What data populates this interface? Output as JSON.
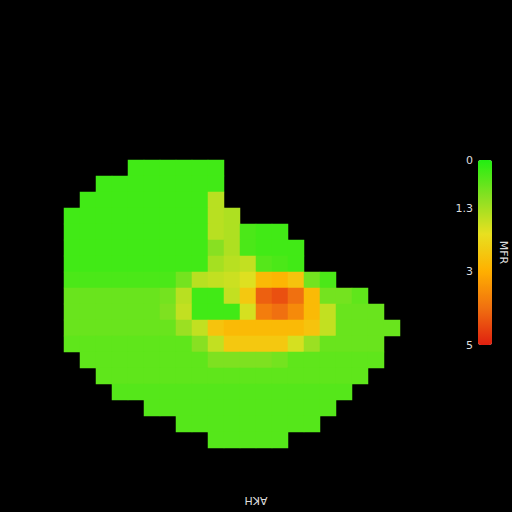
{
  "chart_data": {
    "type": "heatmap",
    "xlabel": "AKH",
    "tick_labels": false,
    "grid_size": [
      32,
      32
    ],
    "rows": [
      {
        "row": 10,
        "start": 8,
        "values": [
          0.3,
          0.3,
          0.3,
          0.3,
          0.3,
          0.3
        ]
      },
      {
        "row": 11,
        "start": 6,
        "values": [
          0.3,
          0.3,
          0.3,
          0.3,
          0.3,
          0.3,
          0.3,
          0.3
        ]
      },
      {
        "row": 12,
        "start": 5,
        "values": [
          0.3,
          0.3,
          0.3,
          0.3,
          0.3,
          0.3,
          0.3,
          0.3,
          1.5
        ]
      },
      {
        "row": 13,
        "start": 4,
        "values": [
          0.3,
          0.3,
          0.3,
          0.3,
          0.3,
          0.3,
          0.3,
          0.3,
          0.3,
          1.5,
          1.4
        ]
      },
      {
        "row": 14,
        "start": 4,
        "values": [
          0.3,
          0.3,
          0.3,
          0.3,
          0.3,
          0.3,
          0.3,
          0.3,
          0.3,
          1.5,
          1.4,
          0.4,
          0.3,
          0.3
        ]
      },
      {
        "row": 15,
        "start": 4,
        "values": [
          0.3,
          0.3,
          0.3,
          0.3,
          0.3,
          0.3,
          0.3,
          0.3,
          0.3,
          1.0,
          1.4,
          0.4,
          0.3,
          0.3,
          0.3
        ]
      },
      {
        "row": 16,
        "start": 4,
        "values": [
          0.3,
          0.3,
          0.3,
          0.3,
          0.3,
          0.3,
          0.3,
          0.3,
          0.3,
          1.3,
          1.5,
          1.6,
          0.5,
          0.4,
          0.3
        ]
      },
      {
        "row": 17,
        "start": 4,
        "values": [
          0.4,
          0.4,
          0.4,
          0.4,
          0.4,
          0.4,
          0.4,
          0.8,
          1.5,
          1.6,
          1.7,
          1.9,
          2.8,
          2.9,
          2.6,
          0.8,
          0.4
        ]
      },
      {
        "row": 18,
        "start": 4,
        "values": [
          0.7,
          0.7,
          0.7,
          0.7,
          0.7,
          0.7,
          0.8,
          1.5,
          0.3,
          0.3,
          1.6,
          2.5,
          4.2,
          4.4,
          4.0,
          2.8,
          0.8,
          0.8,
          0.6
        ]
      },
      {
        "row": 19,
        "start": 4,
        "values": [
          0.7,
          0.7,
          0.7,
          0.7,
          0.7,
          0.7,
          0.9,
          1.6,
          0.3,
          0.3,
          0.3,
          1.8,
          3.8,
          4.0,
          3.6,
          2.8,
          1.6,
          0.7,
          0.7,
          0.7
        ]
      },
      {
        "row": 20,
        "start": 4,
        "values": [
          0.7,
          0.7,
          0.7,
          0.7,
          0.7,
          0.7,
          0.7,
          1.2,
          1.6,
          2.6,
          2.8,
          2.8,
          2.8,
          2.8,
          2.8,
          2.6,
          1.6,
          0.7,
          0.7,
          0.7,
          0.7
        ]
      },
      {
        "row": 21,
        "start": 4,
        "values": [
          0.6,
          0.6,
          0.6,
          0.6,
          0.6,
          0.6,
          0.6,
          0.6,
          1.0,
          1.6,
          2.5,
          2.5,
          2.5,
          2.5,
          1.8,
          1.2,
          0.7,
          0.7,
          0.7,
          0.7
        ]
      },
      {
        "row": 22,
        "start": 5,
        "values": [
          0.6,
          0.6,
          0.6,
          0.6,
          0.6,
          0.6,
          0.6,
          0.6,
          0.9,
          0.9,
          0.9,
          0.9,
          0.8,
          0.6,
          0.6,
          0.6,
          0.6,
          0.6,
          0.6
        ]
      },
      {
        "row": 23,
        "start": 6,
        "values": [
          0.6,
          0.6,
          0.6,
          0.6,
          0.6,
          0.6,
          0.6,
          0.6,
          0.6,
          0.6,
          0.6,
          0.6,
          0.6,
          0.6,
          0.6,
          0.6,
          0.6
        ]
      },
      {
        "row": 24,
        "start": 7,
        "values": [
          0.5,
          0.5,
          0.5,
          0.5,
          0.5,
          0.5,
          0.5,
          0.5,
          0.5,
          0.5,
          0.5,
          0.5,
          0.5,
          0.5,
          0.5
        ]
      },
      {
        "row": 25,
        "start": 9,
        "values": [
          0.5,
          0.5,
          0.5,
          0.5,
          0.5,
          0.5,
          0.5,
          0.5,
          0.5,
          0.5,
          0.5,
          0.5
        ]
      },
      {
        "row": 26,
        "start": 11,
        "values": [
          0.5,
          0.5,
          0.5,
          0.5,
          0.5,
          0.5,
          0.5,
          0.5,
          0.5
        ]
      },
      {
        "row": 27,
        "start": 13,
        "values": [
          0.5,
          0.5,
          0.5,
          0.5,
          0.5
        ]
      }
    ],
    "colorbar": {
      "range": [
        0,
        5
      ],
      "ticks": [
        0,
        1.3,
        3,
        5
      ],
      "label": "MFR"
    }
  }
}
